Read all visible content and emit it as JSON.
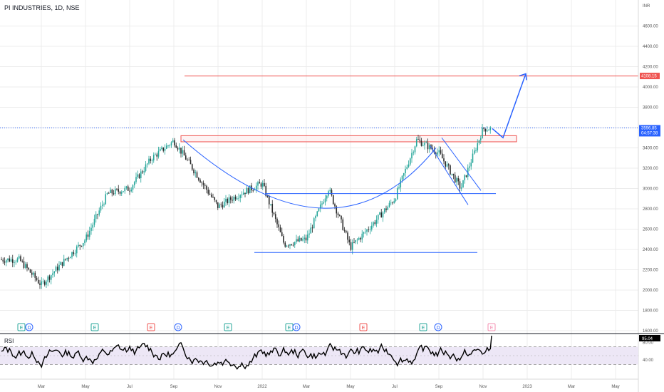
{
  "header": {
    "symbol_line": "PI INDUSTRIES, 1D, NSE"
  },
  "currency": "INR",
  "price_badges": {
    "target": "4108.15",
    "last_price": "3596.85",
    "countdown": "04:57:38"
  },
  "colors": {
    "up": "#26a69a",
    "down": "#2a2a2a",
    "drawing": "#2962ff",
    "resistance": "#ef5350",
    "rsi_band": "#ede7f6",
    "rsi_line": "#000000",
    "grid": "#ececec"
  },
  "event_markers": [
    {
      "letter": "E",
      "kind": "earnings",
      "color": "#26a69a"
    },
    {
      "letter": "D",
      "kind": "dividend",
      "color": "#2962ff"
    },
    {
      "letter": "E",
      "kind": "earnings",
      "color": "#26a69a"
    },
    {
      "letter": "E",
      "kind": "earnings",
      "color": "#ef5350"
    },
    {
      "letter": "D",
      "kind": "dividend",
      "color": "#2962ff"
    },
    {
      "letter": "E",
      "kind": "earnings",
      "color": "#26a69a"
    },
    {
      "letter": "E",
      "kind": "earnings",
      "color": "#26a69a"
    },
    {
      "letter": "D",
      "kind": "dividend",
      "color": "#2962ff"
    },
    {
      "letter": "E",
      "kind": "earnings",
      "color": "#ef5350"
    },
    {
      "letter": "E",
      "kind": "earnings",
      "color": "#26a69a"
    },
    {
      "letter": "D",
      "kind": "dividend",
      "color": "#2962ff"
    },
    {
      "letter": "E",
      "kind": "earnings",
      "color": "#f48fb1"
    }
  ],
  "rsi_panel": {
    "label": "RSI",
    "value": "95.04"
  },
  "chart_data": [
    {
      "type": "candlestick",
      "title": "PI INDUSTRIES, 1D, NSE",
      "ylabel": "INR",
      "ylim": [
        1600,
        4800
      ],
      "y_ticks": [
        "1600.00",
        "1800.00",
        "2000.00",
        "2200.00",
        "2400.00",
        "2600.00",
        "2800.00",
        "3000.00",
        "3200.00",
        "3400.00",
        "3600.00",
        "3800.00",
        "4000.00",
        "4200.00",
        "4400.00",
        "4600.00"
      ],
      "x_ticks": [
        "Mar",
        "May",
        "Jul",
        "Sep",
        "Nov",
        "2022",
        "Mar",
        "May",
        "Jul",
        "Sep",
        "Nov",
        "2023",
        "Mar",
        "May"
      ],
      "approx_close_path": [
        {
          "x": "Feb 2021",
          "y": 2300
        },
        {
          "x": "Mar 2021",
          "y": 2050
        },
        {
          "x": "Apr 2021",
          "y": 2280
        },
        {
          "x": "May 2021",
          "y": 2500
        },
        {
          "x": "Jun 2021",
          "y": 2950
        },
        {
          "x": "Jul 2021",
          "y": 3000
        },
        {
          "x": "Aug 2021",
          "y": 3300
        },
        {
          "x": "Sep 2021",
          "y": 3470
        },
        {
          "x": "Oct 2021",
          "y": 3150
        },
        {
          "x": "Nov 2021",
          "y": 2820
        },
        {
          "x": "Dec 2021",
          "y": 2950
        },
        {
          "x": "Jan 2022",
          "y": 3050
        },
        {
          "x": "Feb 2022",
          "y": 2450
        },
        {
          "x": "Mar 2022",
          "y": 2500
        },
        {
          "x": "Apr 2022",
          "y": 3000
        },
        {
          "x": "May 2022",
          "y": 2420
        },
        {
          "x": "Jun 2022",
          "y": 2650
        },
        {
          "x": "Jul 2022",
          "y": 2900
        },
        {
          "x": "Aug 2022",
          "y": 3480
        },
        {
          "x": "Sep 2022",
          "y": 3350
        },
        {
          "x": "Oct 2022",
          "y": 3000
        },
        {
          "x": "Nov 2022",
          "y": 3590
        }
      ],
      "levels": {
        "target": 4108.15,
        "last_price": 3596.85,
        "resistance_zone": [
          3460,
          3520
        ],
        "neckline": 2950,
        "base": 2370
      }
    },
    {
      "type": "line",
      "title": "RSI",
      "ylim": [
        0,
        100
      ],
      "y_ticks": [
        "80.00",
        "40.00"
      ],
      "bands": [
        30,
        50,
        70
      ],
      "last_value": 95.04
    }
  ]
}
